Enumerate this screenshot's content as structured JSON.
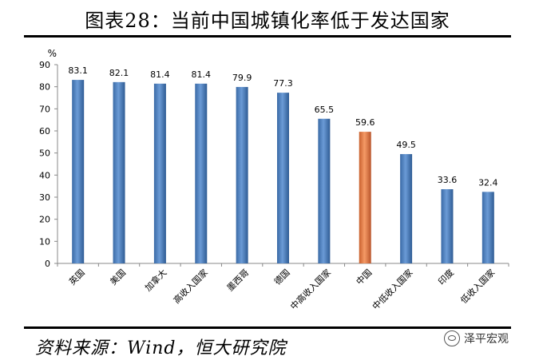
{
  "title": "图表28：当前中国城镇化率低于发达国家",
  "source": "资料来源：Wind，恒大研究院",
  "watermark": "泽平宏观",
  "chart_data": {
    "type": "bar",
    "unit_label": "%",
    "categories": [
      "英国",
      "美国",
      "加拿大",
      "高收入国家",
      "墨西哥",
      "德国",
      "中高收入国家",
      "中国",
      "中低收入国家",
      "印度",
      "低收入国家"
    ],
    "values": [
      83.1,
      82.1,
      81.4,
      81.4,
      79.9,
      77.3,
      65.5,
      59.6,
      49.5,
      33.6,
      32.4
    ],
    "value_labels": [
      "83.1",
      "82.1",
      "81.4",
      "81.4",
      "79.9",
      "77.3",
      "65.5",
      "59.6",
      "49.5",
      "33.6",
      "32.4"
    ],
    "highlight_category": "中国",
    "ylim": [
      0,
      90
    ],
    "yticks": [
      0,
      10,
      20,
      30,
      40,
      50,
      60,
      70,
      80,
      90
    ],
    "grid": false,
    "colors": {
      "default_bar": "#4f81bd",
      "highlight_bar": "#e67e4a"
    }
  }
}
